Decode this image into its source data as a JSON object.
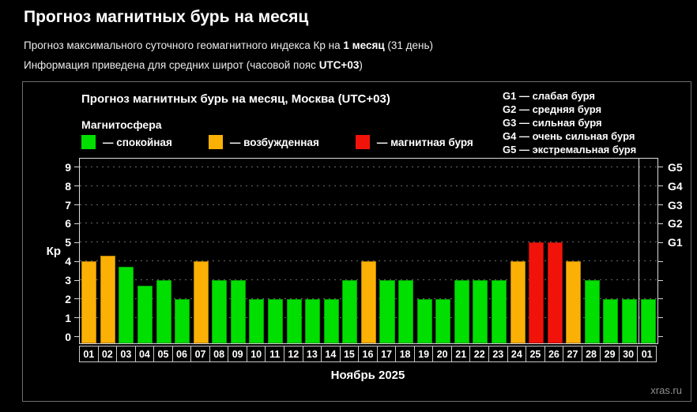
{
  "page": {
    "title": "Прогноз магнитных бурь на месяц",
    "subtitle1": {
      "prefix": "Прогноз максимального суточного геомагнитного индекса Кр на ",
      "bold": "1 месяц",
      "suffix": " (31 день)"
    },
    "subtitle2": {
      "prefix": "Информация приведена для средних широт (часовой пояс ",
      "bold": "UTC+03",
      "suffix": ")"
    }
  },
  "chart": {
    "title": "Прогноз магнитных бурь на месяц, Москва (UTC+03)",
    "legend_title": "Магнитосфера",
    "legend": [
      {
        "label": "— спокойная",
        "status": "quiet",
        "color": "#00DF00"
      },
      {
        "label": "— возбужденная",
        "status": "excited",
        "color": "#FAB005"
      },
      {
        "label": "— магнитная буря",
        "status": "storm",
        "color": "#F1130A"
      }
    ],
    "g_legend": [
      "G1 — слабая буря",
      "G2 — средняя буря",
      "G3 — сильная буря",
      "G4 — очень сильная буря",
      "G5 — экстремальная буря"
    ],
    "y_axis_label": "Кр",
    "x_axis_label": "Ноябрь 2025",
    "watermark": "xras.ru"
  },
  "chart_data": {
    "type": "bar",
    "title": "Прогноз магнитных бурь на месяц, Москва (UTC+03)",
    "xlabel": "Ноябрь 2025",
    "ylabel": "Кр",
    "ylim": [
      0,
      9
    ],
    "grid": "dashed-horizontal",
    "categories": [
      "01",
      "02",
      "03",
      "04",
      "05",
      "06",
      "07",
      "08",
      "09",
      "10",
      "11",
      "12",
      "13",
      "14",
      "15",
      "16",
      "17",
      "18",
      "19",
      "20",
      "21",
      "22",
      "23",
      "24",
      "25",
      "26",
      "27",
      "28",
      "29",
      "30",
      "01"
    ],
    "values": [
      4,
      4.3,
      3.7,
      2.7,
      3,
      2,
      4,
      3,
      3,
      2,
      2,
      2,
      2,
      2,
      3,
      4,
      3,
      3,
      2,
      2,
      3,
      3,
      3,
      4,
      5,
      5,
      4,
      3,
      2,
      2,
      2
    ],
    "statuses": [
      "excited",
      "excited",
      "quiet",
      "quiet",
      "quiet",
      "quiet",
      "excited",
      "quiet",
      "quiet",
      "quiet",
      "quiet",
      "quiet",
      "quiet",
      "quiet",
      "quiet",
      "excited",
      "quiet",
      "quiet",
      "quiet",
      "quiet",
      "quiet",
      "quiet",
      "quiet",
      "excited",
      "storm",
      "storm",
      "excited",
      "quiet",
      "quiet",
      "quiet",
      "quiet"
    ],
    "status_colors": {
      "quiet": "#00DF00",
      "excited": "#FAB005",
      "storm": "#F1130A"
    },
    "y_ticks": [
      0,
      1,
      2,
      3,
      4,
      5,
      6,
      7,
      8,
      9
    ],
    "right_axis_labels": [
      {
        "level": 5,
        "label": "G1"
      },
      {
        "level": 6,
        "label": "G2"
      },
      {
        "level": 7,
        "label": "G3"
      },
      {
        "level": 8,
        "label": "G4"
      },
      {
        "level": 9,
        "label": "G5"
      }
    ],
    "month_separator_index": 30
  }
}
